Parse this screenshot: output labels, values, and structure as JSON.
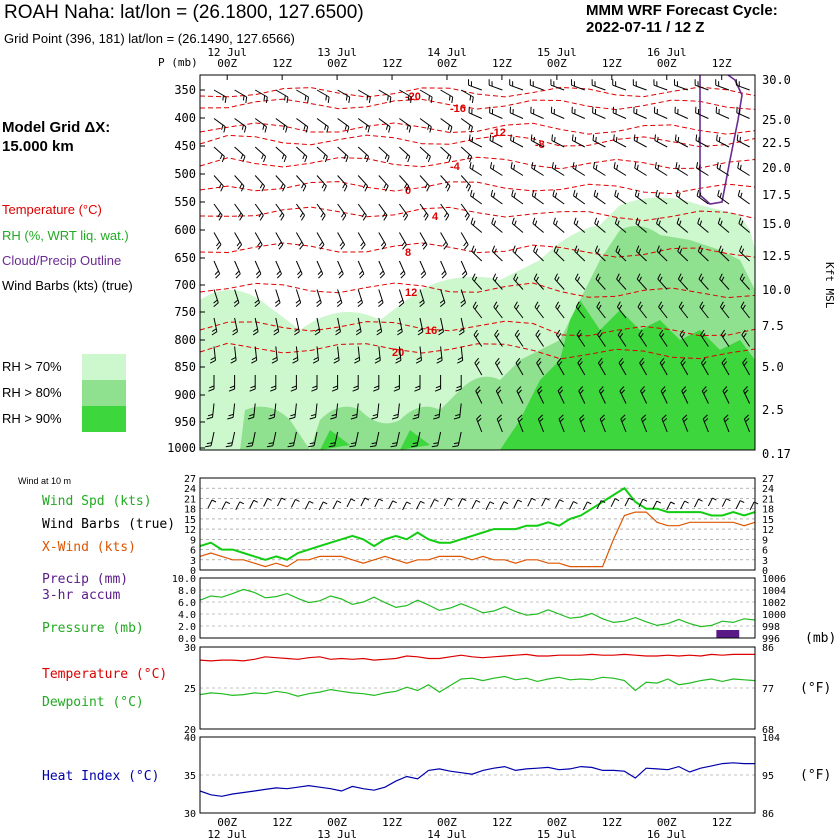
{
  "header": {
    "title": "ROAH Naha:  lat/lon = (26.1800, 127.6500)",
    "subtitle": "Grid Point (396, 181) lat/lon = (26.1490, 127.6566)",
    "cycle_line1": "MMM WRF Forecast Cycle:",
    "cycle_line2": "2022-07-11 / 12  Z"
  },
  "model_grid": {
    "line1": "Model Grid ΔX:",
    "line2": " 15.000 km"
  },
  "legend": {
    "temperature": "Temperature (°C)",
    "rh": "RH (%, WRT liq. wat.)",
    "cloud": "Cloud/Precip Outline",
    "wind": "Wind Barbs (kts) (true)"
  },
  "rh_legend": [
    {
      "label": "RH > 70%",
      "color": "#cdf7cd"
    },
    {
      "label": "RH > 80%",
      "color": "#8fe08f"
    },
    {
      "label": "RH > 90%",
      "color": "#3dd63d"
    }
  ],
  "colors": {
    "temperature": "#dd0000",
    "rh": "#22bb22",
    "cloud": "#6b2c91",
    "xwind": "#dd5500",
    "precip": "#5a1a86",
    "pressure": "#22bb22",
    "heat_index": "#0000aa",
    "dewpoint": "#22bb22",
    "wind_speed": "#11cc11"
  },
  "chart_data": [
    {
      "type": "heatmap",
      "name": "cross-section",
      "x_top_dates": [
        "12 Jul",
        "13 Jul",
        "14 Jul",
        "15 Jul",
        "16 Jul"
      ],
      "x_ticks": [
        "00Z",
        "12Z",
        "00Z",
        "12Z",
        "00Z",
        "12Z",
        "00Z",
        "12Z",
        "00Z",
        "12Z"
      ],
      "y_label": "P (mb)",
      "pressure_levels": [
        350,
        400,
        450,
        500,
        550,
        600,
        650,
        700,
        750,
        800,
        850,
        900,
        950,
        1000
      ],
      "right_axis_label": "Kft MSL",
      "right_axis_ticks": [
        "30.0",
        "25.0",
        "22.5",
        "20.0",
        "17.5",
        "15.0",
        "12.5",
        "10.0",
        "7.5",
        "5.0",
        "2.5",
        "0.17"
      ],
      "temperature_contours": [
        "-20",
        "-16",
        "-12",
        "-8",
        "-4",
        "0",
        "4",
        "8",
        "12",
        "16",
        "20"
      ]
    },
    {
      "type": "line",
      "name": "wind-panel",
      "title": "Wind at 10 m",
      "series": [
        {
          "name": "Wind Spd (kts)",
          "values": [
            7,
            8,
            6,
            6,
            5,
            4,
            3,
            4,
            3,
            5,
            6,
            7,
            8,
            9,
            10,
            9,
            7,
            9,
            10,
            9,
            11,
            9,
            8,
            8,
            9,
            10,
            11,
            12,
            12,
            12,
            13,
            13,
            14,
            13,
            15,
            16,
            18,
            20,
            22,
            24,
            20,
            18,
            18,
            17,
            17,
            17,
            17,
            16,
            16,
            17,
            16,
            17
          ]
        },
        {
          "name": "Wind Barbs (true)",
          "values": []
        },
        {
          "name": "X-Wind (kts)",
          "values": [
            4,
            5,
            4,
            3,
            3,
            2,
            1,
            2,
            1,
            3,
            3,
            4,
            4,
            4,
            3,
            2,
            3,
            4,
            3,
            2,
            3,
            3,
            4,
            4,
            4,
            3,
            4,
            3,
            3,
            2,
            3,
            3,
            2,
            2,
            1,
            1,
            1,
            1,
            9,
            16,
            17,
            17,
            14,
            13,
            13,
            14,
            14,
            14,
            14,
            14,
            13,
            14
          ]
        }
      ],
      "ylim": [
        0,
        27
      ],
      "left_ticks": [
        "27",
        "24",
        "21",
        "18",
        "15",
        "12",
        "9",
        "6",
        "3",
        "0"
      ],
      "right_ticks": [
        "27",
        "24",
        "21",
        "18",
        "15",
        "12",
        "9",
        "6",
        "3",
        "0"
      ]
    },
    {
      "type": "line",
      "name": "precip-pressure-panel",
      "series": [
        {
          "name": "Precip (mm)",
          "subtitle": "3-hr accum",
          "values": [
            0,
            0,
            0,
            0,
            0,
            0,
            0,
            0,
            0,
            0,
            0,
            0,
            0,
            0,
            0,
            0,
            0,
            0,
            0,
            0,
            0,
            0,
            0,
            0,
            0,
            0,
            0,
            0,
            0,
            0,
            0,
            0,
            0,
            0,
            0,
            0,
            0,
            0,
            0,
            0,
            0,
            0,
            0,
            0,
            0,
            0,
            0,
            0,
            1.0,
            1.0,
            0,
            0
          ]
        },
        {
          "name": "Pressure (mb)",
          "values": [
            1002.3,
            1003.0,
            1002.8,
            1003.4,
            1004.1,
            1003.6,
            1002.7,
            1002.9,
            1003.4,
            1002.6,
            1001.9,
            1002.2,
            1003.0,
            1002.5,
            1001.6,
            1002.0,
            1002.8,
            1001.9,
            1001.1,
            1001.4,
            1002.3,
            1001.5,
            1000.6,
            1001.0,
            1001.7,
            1001.0,
            1000.2,
            1000.5,
            1001.2,
            1000.4,
            999.8,
            1000.0,
            1000.7,
            1000.0,
            999.3,
            999.5,
            1000.1,
            999.2,
            998.6,
            998.8,
            999.4,
            998.7,
            998.1,
            998.4,
            999.1,
            998.4,
            997.9,
            998.1,
            998.8,
            998.6,
            999.2,
            999.0
          ]
        }
      ],
      "left_ticks": [
        "10.0",
        "8.0",
        "6.0",
        "4.0",
        "2.0",
        "0.0"
      ],
      "right_ticks": [
        "1006",
        "1004",
        "1002",
        "1000",
        "998",
        "996"
      ],
      "right_label": "(mb)"
    },
    {
      "type": "line",
      "name": "temp-dewpoint-panel",
      "series": [
        {
          "name": "Temperature (°C)",
          "values": [
            28.4,
            28.3,
            28.4,
            28.4,
            28.3,
            28.5,
            28.8,
            28.7,
            28.6,
            28.5,
            28.7,
            28.8,
            28.5,
            28.6,
            28.5,
            28.6,
            28.4,
            28.5,
            28.6,
            28.9,
            28.8,
            28.6,
            28.6,
            28.8,
            29.0,
            28.8,
            28.7,
            28.8,
            28.9,
            29.0,
            29.1,
            28.9,
            28.9,
            29.0,
            29.0,
            29.0,
            29.1,
            29.0,
            29.0,
            29.1,
            29.0,
            28.9,
            28.9,
            29.0,
            28.9,
            29.0,
            28.9,
            29.1,
            29.0,
            29.1,
            29.1,
            29.1
          ]
        },
        {
          "name": "Dewpoint (°C)",
          "values": [
            24.2,
            24.4,
            24.3,
            24.1,
            24.2,
            24.4,
            24.3,
            24.6,
            24.4,
            24.0,
            24.3,
            24.5,
            24.8,
            24.6,
            24.4,
            24.3,
            24.1,
            24.4,
            24.6,
            25.1,
            24.7,
            25.4,
            24.5,
            25.3,
            26.1,
            26.2,
            25.9,
            26.2,
            26.4,
            26.0,
            26.2,
            25.8,
            26.1,
            26.3,
            26.0,
            26.1,
            26.0,
            26.3,
            26.2,
            25.9,
            24.7,
            25.7,
            25.6,
            26.1,
            25.4,
            25.6,
            25.9,
            26.1,
            25.8,
            26.1,
            26.0,
            25.9
          ]
        }
      ],
      "ylim": [
        20,
        30
      ],
      "left_ticks": [
        "30",
        "25",
        "20"
      ],
      "right_ticks": [
        "86",
        "77",
        "68"
      ],
      "right_label": "(°F)"
    },
    {
      "type": "line",
      "name": "heat-index-panel",
      "series": [
        {
          "name": "Heat Index (°C)",
          "values": [
            32.9,
            32.4,
            32.2,
            32.5,
            32.7,
            32.9,
            33.1,
            33.3,
            33.2,
            33.4,
            33.6,
            33.4,
            33.2,
            32.9,
            33.5,
            33.2,
            33.0,
            33.4,
            34.2,
            34.8,
            34.5,
            35.6,
            35.8,
            35.5,
            35.3,
            35.1,
            35.6,
            35.9,
            36.1,
            35.6,
            35.8,
            35.9,
            36.0,
            35.7,
            35.8,
            36.1,
            36.0,
            35.6,
            35.6,
            35.5,
            34.6,
            35.9,
            35.8,
            35.7,
            36.1,
            35.4,
            35.9,
            36.2,
            36.5,
            36.6,
            36.5,
            36.5
          ]
        }
      ],
      "ylim": [
        30,
        40
      ],
      "left_ticks": [
        "40",
        "35",
        "30"
      ],
      "right_ticks": [
        "104",
        "95",
        "86"
      ],
      "right_label": "(°F)"
    }
  ]
}
